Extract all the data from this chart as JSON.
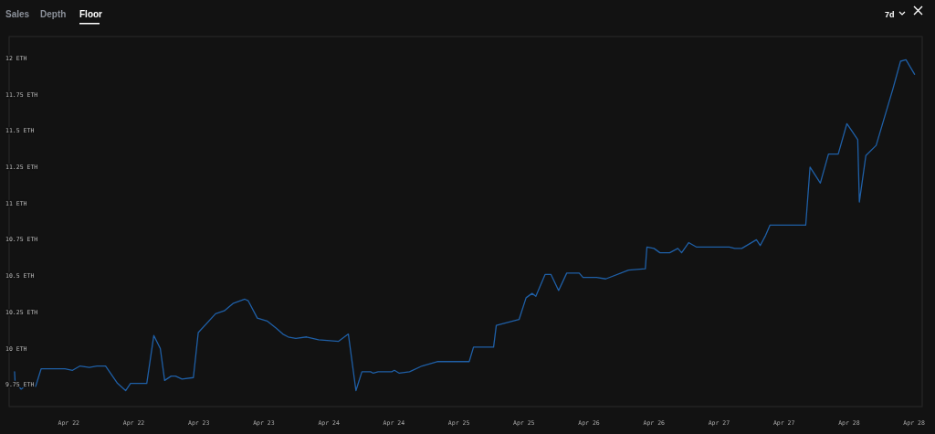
{
  "chart_data": {
    "type": "line",
    "annotations": [
      "Sales",
      "Depth",
      "Floor",
      "7d"
    ],
    "x": [
      "--04-21T14:00",
      "--04-21T14:06",
      "--04-21T15:12",
      "--04-21T16:18",
      "--04-21T17:54",
      "--04-21T18:54",
      "--04-21T20:48",
      "--04-21T21:36",
      "--04-21T23:18",
      "--04-22T00:42",
      "--04-22T02:06",
      "--04-22T03:48",
      "--04-22T05:12",
      "--04-22T06:48",
      "--04-22T09:00",
      "--04-22T10:30",
      "--04-22T11:24",
      "--04-22T14:24",
      "--04-22T15:42",
      "--04-22T16:54",
      "--04-22T17:42",
      "--04-22T18:54",
      "--04-22T19:42",
      "--04-22T20:54",
      "--04-22T23:00",
      "--04-22T23:54",
      "--04-23T03:06",
      "--04-23T04:42",
      "--04-23T06:18",
      "--04-23T08:30",
      "--04-23T09:06",
      "--04-23T10:48",
      "--04-23T12:36",
      "--04-23T14:18",
      "--04-23T15:30",
      "--04-23T16:30",
      "--04-23T17:54",
      "--04-23T19:54",
      "--04-23T22:06",
      "--04-24T01:48",
      "--04-24T03:36",
      "--04-24T05:00",
      "--04-24T06:06",
      "--04-24T07:42",
      "--04-24T08:12",
      "--04-24T09:06",
      "--04-24T11:36",
      "--04-24T12:06",
      "--04-24T13:00",
      "--04-24T14:54",
      "--04-24T17:12",
      "--04-24T20:00",
      "--04-25T01:54",
      "--04-25T02:42",
      "--04-25T06:24",
      "--04-25T06:54",
      "--04-25T11:06",
      "--04-25T12:24",
      "--04-25T13:30",
      "--04-25T14:12",
      "--04-25T15:54",
      "--04-25T17:00",
      "--04-25T18:24",
      "--04-25T19:54",
      "--04-25T22:12",
      "--04-25T22:54",
      "--04-26T01:24",
      "--04-26T03:06",
      "--04-26T07:18",
      "--04-26T10:24",
      "--04-26T10:42",
      "--04-26T12:00",
      "--04-26T13:06",
      "--04-26T14:54",
      "--04-26T16:24",
      "--04-26T17:06",
      "--04-26T18:24",
      "--04-26T19:48",
      "--04-27T01:54",
      "--04-27T02:54",
      "--04-27T04:12",
      "--04-27T06:54",
      "--04-27T07:36",
      "--04-27T08:36",
      "--04-27T09:24",
      "--04-27T16:00",
      "--04-27T16:48",
      "--04-27T18:42",
      "--04-27T20:12",
      "--04-27T22:00",
      "--04-27T23:36",
      "--04-28T00:30",
      "--04-28T01:36",
      "--04-28T01:54",
      "--04-28T03:06",
      "--04-28T05:00",
      "--04-28T08:06",
      "--04-28T09:30",
      "--04-28T10:30",
      "--04-28T12:06"
    ],
    "series": [
      {
        "color": "#1f5fa6",
        "values": [
          9.84,
          9.77,
          9.72,
          9.75,
          9.74,
          9.86,
          9.86,
          9.86,
          9.86,
          9.85,
          9.88,
          9.87,
          9.88,
          9.88,
          9.76,
          9.71,
          9.76,
          9.76,
          10.09,
          10.0,
          9.78,
          9.81,
          9.81,
          9.79,
          9.8,
          10.11,
          10.24,
          10.26,
          10.31,
          10.34,
          10.33,
          10.21,
          10.19,
          10.14,
          10.1,
          10.08,
          10.07,
          10.08,
          10.06,
          10.05,
          10.1,
          9.71,
          9.84,
          9.84,
          9.83,
          9.84,
          9.84,
          9.85,
          9.83,
          9.84,
          9.88,
          9.91,
          9.91,
          10.01,
          10.01,
          10.16,
          10.2,
          10.35,
          10.38,
          10.36,
          10.51,
          10.51,
          10.4,
          10.52,
          10.52,
          10.49,
          10.49,
          10.48,
          10.54,
          10.55,
          10.7,
          10.69,
          10.66,
          10.66,
          10.69,
          10.66,
          10.73,
          10.7,
          10.7,
          10.69,
          10.69,
          10.75,
          10.71,
          10.78,
          10.85,
          10.85,
          11.25,
          11.14,
          11.34,
          11.34,
          11.55,
          11.5,
          11.44,
          11.01,
          11.33,
          11.4,
          11.79,
          11.98,
          11.99,
          11.89
        ]
      }
    ],
    "xticks": [
      {
        "value": "--04-22T00:00",
        "label": "Apr 22"
      },
      {
        "value": "--04-22T12:00",
        "label": "Apr 22"
      },
      {
        "value": "--04-23T00:00",
        "label": "Apr 23"
      },
      {
        "value": "--04-23T12:00",
        "label": "Apr 23"
      },
      {
        "value": "--04-24T00:00",
        "label": "Apr 24"
      },
      {
        "value": "--04-24T12:00",
        "label": "Apr 24"
      },
      {
        "value": "--04-25T00:00",
        "label": "Apr 25"
      },
      {
        "value": "--04-25T12:00",
        "label": "Apr 25"
      },
      {
        "value": "--04-26T00:00",
        "label": "Apr 26"
      },
      {
        "value": "--04-26T12:00",
        "label": "Apr 26"
      },
      {
        "value": "--04-27T00:00",
        "label": "Apr 27"
      },
      {
        "value": "--04-27T12:00",
        "label": "Apr 27"
      },
      {
        "value": "--04-28T00:00",
        "label": "Apr 28"
      },
      {
        "value": "--04-28T12:00",
        "label": "Apr 28"
      }
    ],
    "xlim": [
      "--04-21T13:00",
      "--04-28T13:30"
    ],
    "ylim": [
      9.6,
      12.15
    ],
    "yticks": [
      {
        "value": 9.75,
        "label": "9.75 ETH"
      },
      {
        "value": 10,
        "label": "10 ETH"
      },
      {
        "value": 10.25,
        "label": "10.25 ETH"
      },
      {
        "value": 10.5,
        "label": "10.5 ETH"
      },
      {
        "value": 10.75,
        "label": "10.75 ETH"
      },
      {
        "value": 11,
        "label": "11 ETH"
      },
      {
        "value": 11.25,
        "label": "11.25 ETH"
      },
      {
        "value": 11.5,
        "label": "11.5 ETH"
      },
      {
        "value": 11.75,
        "label": "11.75 ETH"
      },
      {
        "value": 12,
        "label": "12 ETH"
      }
    ],
    "grid": false,
    "marker": "none",
    "line_style": "solid"
  }
}
